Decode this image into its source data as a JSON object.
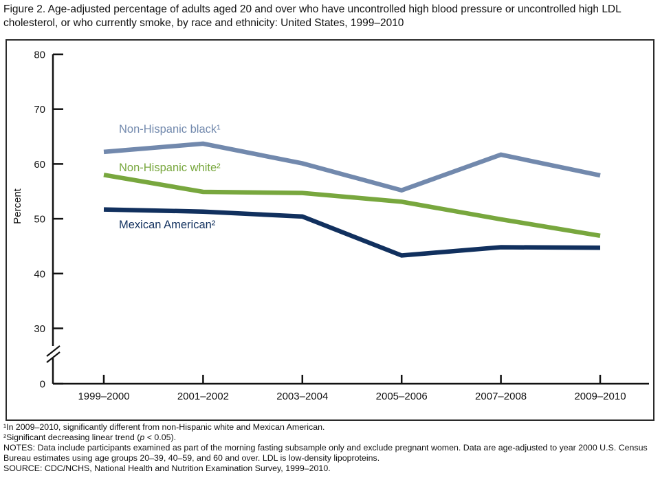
{
  "figure_title": "Figure 2. Age-adjusted percentage of adults aged 20 and over who have uncontrolled high blood pressure or uncontrolled high LDL cholesterol, or who currently smoke, by race and ethnicity: United States, 1999–2010",
  "chart_data": {
    "type": "line",
    "title": "",
    "xlabel": "",
    "ylabel": "Percent",
    "categories": [
      "1999–2000",
      "2001–2002",
      "2003–2004",
      "2005–2006",
      "2007–2008",
      "2009–2010"
    ],
    "series": [
      {
        "name": "Non-Hispanic black¹",
        "color": "#7289ad",
        "values": [
          62.2,
          63.7,
          60.1,
          55.2,
          61.7,
          57.9
        ]
      },
      {
        "name": "Non-Hispanic white²",
        "color": "#78a73e",
        "values": [
          58.0,
          54.9,
          54.7,
          53.1,
          49.9,
          46.9
        ]
      },
      {
        "name": "Mexican American²",
        "color": "#11305e",
        "values": [
          51.7,
          51.3,
          50.4,
          43.3,
          44.8,
          44.7
        ]
      }
    ],
    "y_ticks": [
      80,
      70,
      60,
      50,
      40,
      30,
      0
    ],
    "axis_break_between": [
      0,
      30
    ],
    "grid": false,
    "legend_position": "inline-labels-near-lines"
  },
  "footnotes": {
    "fn1": "¹In 2009–2010, significantly different from non-Hispanic white and Mexican American.",
    "fn2_pre": "²Significant decreasing linear trend (",
    "fn2_italic": "p",
    "fn2_post": " < 0.05).",
    "notes": "NOTES: Data include participants examined as part of the morning fasting subsample only and exclude pregnant women. Data are age-adjusted to year 2000 U.S. Census Bureau estimates using age groups 20–39, 40–59, and 60 and over. LDL is low-density lipoproteins.",
    "source": "SOURCE: CDC/NCHS, National Health and Nutrition Examination Survey, 1999–2010."
  }
}
